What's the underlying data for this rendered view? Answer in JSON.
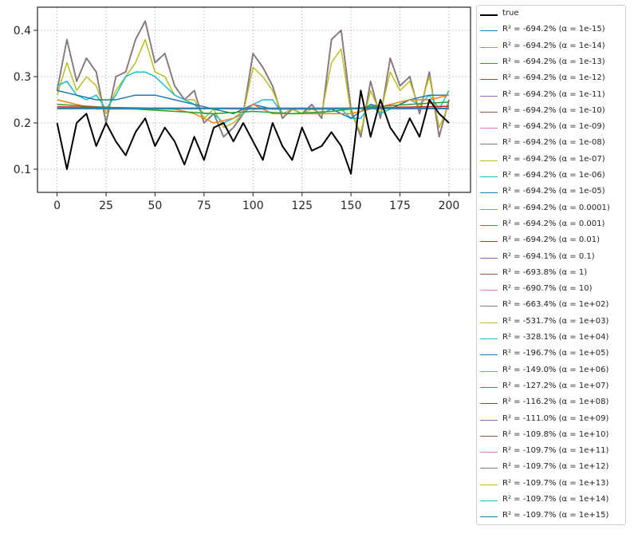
{
  "chart_data": {
    "type": "line",
    "title": "",
    "xlabel": "",
    "ylabel": "",
    "xlim": [
      -10,
      211
    ],
    "ylim": [
      0.05,
      0.45
    ],
    "xticks": [
      "0",
      "25",
      "50",
      "75",
      "100",
      "125",
      "150",
      "175",
      "200"
    ],
    "xtick_values": [
      0,
      25,
      50,
      75,
      100,
      125,
      150,
      175,
      200
    ],
    "yticks": [
      "0.1",
      "0.2",
      "0.3",
      "0.4"
    ],
    "ytick_values": [
      0.1,
      0.2,
      0.3,
      0.4
    ],
    "grid": true,
    "legend_position": "outside-right",
    "series": [
      {
        "name": "true",
        "color": "#000000",
        "width": 2,
        "x": [
          0,
          5,
          10,
          15,
          20,
          25,
          30,
          35,
          40,
          45,
          50,
          55,
          60,
          65,
          70,
          75,
          80,
          85,
          90,
          95,
          100,
          105,
          110,
          115,
          120,
          125,
          130,
          135,
          140,
          145,
          150,
          155,
          160,
          165,
          170,
          175,
          180,
          185,
          190,
          195,
          200
        ],
        "y": [
          0.2,
          0.1,
          0.2,
          0.22,
          0.15,
          0.2,
          0.16,
          0.13,
          0.18,
          0.21,
          0.15,
          0.19,
          0.16,
          0.11,
          0.17,
          0.12,
          0.19,
          0.2,
          0.16,
          0.2,
          0.16,
          0.12,
          0.2,
          0.15,
          0.12,
          0.19,
          0.14,
          0.15,
          0.18,
          0.15,
          0.09,
          0.27,
          0.17,
          0.25,
          0.19,
          0.16,
          0.21,
          0.17,
          0.25,
          0.22,
          0.2
        ]
      },
      {
        "name": "$R^2 = $-694.2%  ($\\alpha = $1e-15)",
        "color": "#1f77b4",
        "x": [
          0,
          5,
          10,
          15,
          20,
          25,
          30,
          35,
          40,
          45,
          50,
          55,
          60,
          65,
          70,
          75,
          80,
          85,
          90,
          95,
          100,
          105,
          110,
          115,
          120,
          125,
          130,
          135,
          140,
          145,
          150,
          155,
          160,
          165,
          170,
          175,
          180,
          185,
          190,
          195,
          200
        ],
        "y": [
          0.27,
          0.38,
          0.29,
          0.34,
          0.31,
          0.2,
          0.3,
          0.31,
          0.38,
          0.42,
          0.33,
          0.35,
          0.28,
          0.25,
          0.27,
          0.2,
          0.22,
          0.17,
          0.19,
          0.22,
          0.35,
          0.32,
          0.28,
          0.21,
          0.23,
          0.22,
          0.24,
          0.21,
          0.38,
          0.4,
          0.23,
          0.17,
          0.29,
          0.21,
          0.34,
          0.28,
          0.3,
          0.22,
          0.31,
          0.17,
          0.25
        ]
      },
      {
        "name": "$R^2 = $-694.2%  ($\\alpha = $1e-14)",
        "color": "#ff7f0e",
        "same_as": 1
      },
      {
        "name": "$R^2 = $-694.2%  ($\\alpha = $1e-13)",
        "color": "#2ca02c",
        "same_as": 1
      },
      {
        "name": "$R^2 = $-694.2%  ($\\alpha = $1e-12)",
        "color": "#d62728",
        "same_as": 1
      },
      {
        "name": "$R^2 = $-694.2%  ($\\alpha = $1e-11)",
        "color": "#9467bd",
        "same_as": 1
      },
      {
        "name": "$R^2 = $-694.2%  ($\\alpha = $1e-10)",
        "color": "#8c564b",
        "same_as": 1
      },
      {
        "name": "$R^2 = $-694.2%  ($\\alpha = $1e-09)",
        "color": "#e377c2",
        "same_as": 1
      },
      {
        "name": "$R^2 = $-694.2%  ($\\alpha = $1e-08)",
        "color": "#7f7f7f",
        "same_as": 1
      },
      {
        "name": "$R^2 = $-694.2%  ($\\alpha = $1e-07)",
        "color": "#bcbd22",
        "same_as": 1
      },
      {
        "name": "$R^2 = $-694.2%  ($\\alpha = $1e-06)",
        "color": "#17becf",
        "same_as": 1
      },
      {
        "name": "$R^2 = $-694.2%  ($\\alpha = $1e-05)",
        "color": "#1f77b4",
        "same_as": 1
      },
      {
        "name": "$R^2 = $-694.2%  ($\\alpha = $0.0001)",
        "color": "#ff7f0e",
        "same_as": 1
      },
      {
        "name": "$R^2 = $-694.2%  ($\\alpha = $0.001)",
        "color": "#2ca02c",
        "same_as": 1
      },
      {
        "name": "$R^2 = $-694.2%  ($\\alpha = $0.01)",
        "color": "#d62728",
        "same_as": 1
      },
      {
        "name": "$R^2 = $-694.1%  ($\\alpha = $0.1)",
        "color": "#9467bd",
        "same_as": 1
      },
      {
        "name": "$R^2 = $-693.8%  ($\\alpha = $1)",
        "color": "#8c564b",
        "same_as": 1
      },
      {
        "name": "$R^2 = $-690.7%  ($\\alpha = $10)",
        "color": "#e377c2",
        "same_as": 1
      },
      {
        "name": "$R^2 = $-663.4%  ($\\alpha = $1e+02)",
        "color": "#7f7f7f",
        "same_as": 1
      },
      {
        "name": "$R^2 = $-531.7%  ($\\alpha = $1e+03)",
        "color": "#bcbd22",
        "x": [
          0,
          5,
          10,
          15,
          20,
          25,
          30,
          35,
          40,
          45,
          50,
          55,
          60,
          65,
          70,
          75,
          80,
          85,
          90,
          95,
          100,
          105,
          110,
          115,
          120,
          125,
          130,
          135,
          140,
          145,
          150,
          155,
          160,
          165,
          170,
          175,
          180,
          185,
          190,
          195,
          200
        ],
        "y": [
          0.26,
          0.33,
          0.27,
          0.3,
          0.28,
          0.22,
          0.27,
          0.3,
          0.33,
          0.38,
          0.31,
          0.3,
          0.26,
          0.25,
          0.25,
          0.21,
          0.23,
          0.19,
          0.2,
          0.22,
          0.32,
          0.3,
          0.27,
          0.22,
          0.23,
          0.22,
          0.23,
          0.22,
          0.33,
          0.36,
          0.22,
          0.18,
          0.27,
          0.22,
          0.31,
          0.27,
          0.29,
          0.23,
          0.3,
          0.19,
          0.24
        ]
      },
      {
        "name": "$R^2 = $-328.1%  ($\\alpha = $1e+04)",
        "color": "#17becf",
        "x": [
          0,
          5,
          10,
          15,
          20,
          25,
          30,
          35,
          40,
          45,
          50,
          55,
          60,
          65,
          70,
          75,
          80,
          85,
          90,
          95,
          100,
          105,
          110,
          115,
          120,
          125,
          130,
          135,
          140,
          145,
          150,
          155,
          160,
          165,
          170,
          175,
          180,
          185,
          190,
          195,
          200
        ],
        "y": [
          0.28,
          0.29,
          0.26,
          0.25,
          0.26,
          0.23,
          0.26,
          0.3,
          0.31,
          0.31,
          0.3,
          0.28,
          0.26,
          0.25,
          0.24,
          0.22,
          0.22,
          0.2,
          0.21,
          0.22,
          0.24,
          0.25,
          0.25,
          0.22,
          0.22,
          0.22,
          0.22,
          0.22,
          0.23,
          0.23,
          0.21,
          0.21,
          0.24,
          0.22,
          0.23,
          0.24,
          0.25,
          0.24,
          0.26,
          0.23,
          0.27
        ]
      },
      {
        "name": "$R^2 = $-196.7%  ($\\alpha = $1e+05)",
        "color": "#1f77b4",
        "x": [
          0,
          10,
          20,
          30,
          40,
          50,
          60,
          70,
          80,
          90,
          100,
          110,
          120,
          130,
          140,
          150,
          160,
          170,
          180,
          190,
          200
        ],
        "y": [
          0.27,
          0.26,
          0.25,
          0.25,
          0.26,
          0.26,
          0.25,
          0.24,
          0.23,
          0.22,
          0.24,
          0.23,
          0.23,
          0.23,
          0.23,
          0.21,
          0.24,
          0.23,
          0.25,
          0.26,
          0.26
        ]
      },
      {
        "name": "$R^2 = $-149.0%  ($\\alpha = $1e+06)",
        "color": "#ff7f0e",
        "x": [
          0,
          10,
          20,
          30,
          40,
          50,
          60,
          70,
          80,
          90,
          100,
          110,
          120,
          130,
          140,
          150,
          160,
          170,
          180,
          190,
          200
        ],
        "y": [
          0.25,
          0.24,
          0.23,
          0.23,
          0.23,
          0.23,
          0.23,
          0.22,
          0.2,
          0.21,
          0.24,
          0.22,
          0.22,
          0.22,
          0.22,
          0.22,
          0.23,
          0.24,
          0.25,
          0.25,
          0.26
        ]
      },
      {
        "name": "$R^2 = $-127.2%  ($\\alpha = $1e+07)",
        "color": "#2ca02c",
        "x": [
          0,
          20,
          40,
          60,
          80,
          100,
          120,
          140,
          160,
          180,
          200
        ],
        "y": [
          0.24,
          0.235,
          0.23,
          0.225,
          0.22,
          0.225,
          0.22,
          0.225,
          0.235,
          0.24,
          0.245
        ]
      },
      {
        "name": "$R^2 = $-116.2%  ($\\alpha = $1e+08)",
        "color": "#d62728",
        "x": [
          0,
          50,
          100,
          150,
          200
        ],
        "y": [
          0.235,
          0.232,
          0.23,
          0.232,
          0.236
        ]
      },
      {
        "name": "$R^2 = $-111.0%  ($\\alpha = $1e+09)",
        "color": "#9467bd",
        "x": [
          0,
          200
        ],
        "y": [
          0.232,
          0.232
        ]
      },
      {
        "name": "$R^2 = $-109.8%  ($\\alpha = $1e+10)",
        "color": "#8c564b",
        "x": [
          0,
          200
        ],
        "y": [
          0.231,
          0.231
        ]
      },
      {
        "name": "$R^2 = $-109.7%  ($\\alpha = $1e+11)",
        "color": "#e377c2",
        "x": [
          0,
          200
        ],
        "y": [
          0.231,
          0.231
        ]
      },
      {
        "name": "$R^2 = $-109.7%  ($\\alpha = $1e+12)",
        "color": "#7f7f7f",
        "x": [
          0,
          200
        ],
        "y": [
          0.231,
          0.231
        ]
      },
      {
        "name": "$R^2 = $-109.7%  ($\\alpha = $1e+13)",
        "color": "#bcbd22",
        "x": [
          0,
          200
        ],
        "y": [
          0.231,
          0.231
        ]
      },
      {
        "name": "$R^2 = $-109.7%  ($\\alpha = $1e+14)",
        "color": "#17becf",
        "x": [
          0,
          200
        ],
        "y": [
          0.231,
          0.231
        ]
      },
      {
        "name": "$R^2 = $-109.7%  ($\\alpha = $1e+15)",
        "color": "#1f77b4",
        "x": [
          0,
          200
        ],
        "y": [
          0.231,
          0.231
        ]
      }
    ]
  },
  "legend": {
    "labels": [
      "true",
      "R² = -694.2%  (α = 1e-15)",
      "R² = -694.2%  (α = 1e-14)",
      "R² = -694.2%  (α = 1e-13)",
      "R² = -694.2%  (α = 1e-12)",
      "R² = -694.2%  (α = 1e-11)",
      "R² = -694.2%  (α = 1e-10)",
      "R² = -694.2%  (α = 1e-09)",
      "R² = -694.2%  (α = 1e-08)",
      "R² = -694.2%  (α = 1e-07)",
      "R² = -694.2%  (α = 1e-06)",
      "R² = -694.2%  (α = 1e-05)",
      "R² = -694.2%  (α = 0.0001)",
      "R² = -694.2%  (α = 0.001)",
      "R² = -694.2%  (α = 0.01)",
      "R² = -694.1%  (α = 0.1)",
      "R² = -693.8%  (α = 1)",
      "R² = -690.7%  (α = 10)",
      "R² = -663.4%  (α = 1e+02)",
      "R² = -531.7%  (α = 1e+03)",
      "R² = -328.1%  (α = 1e+04)",
      "R² = -196.7%  (α = 1e+05)",
      "R² = -149.0%  (α = 1e+06)",
      "R² = -127.2%  (α = 1e+07)",
      "R² = -116.2%  (α = 1e+08)",
      "R² = -111.0%  (α = 1e+09)",
      "R² = -109.8%  (α = 1e+10)",
      "R² = -109.7%  (α = 1e+11)",
      "R² = -109.7%  (α = 1e+12)",
      "R² = -109.7%  (α = 1e+13)",
      "R² = -109.7%  (α = 1e+14)",
      "R² = -109.7%  (α = 1e+15)"
    ]
  }
}
